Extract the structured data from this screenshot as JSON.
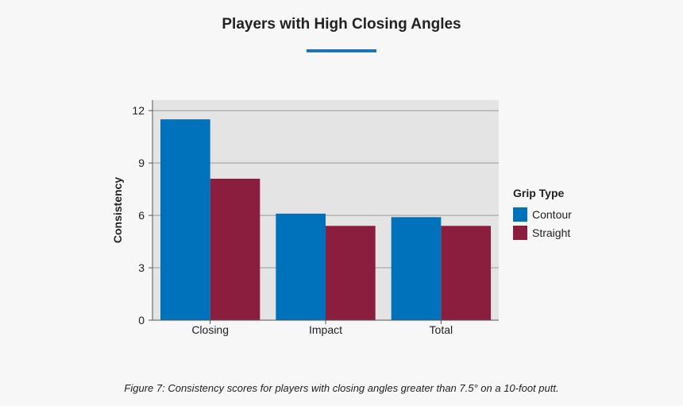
{
  "page": {
    "title": "Players with High Closing Angles",
    "caption": "Figure 7: Consistency scores for players with closing angles greater than 7.5° on a 10-foot putt.",
    "accent_color": "#1f73b7"
  },
  "chart_data": {
    "type": "bar",
    "title": "Players with High Closing Angles",
    "xlabel": "",
    "ylabel": "Consistency",
    "categories": [
      "Closing",
      "Impact",
      "Total"
    ],
    "series": [
      {
        "name": "Contour",
        "color": "#0072bc",
        "values": [
          11.5,
          6.1,
          5.9
        ]
      },
      {
        "name": "Straight",
        "color": "#8b1e3f",
        "values": [
          8.1,
          5.4,
          5.4
        ]
      }
    ],
    "ylim": [
      0,
      12.6
    ],
    "yticks": [
      0,
      3,
      6,
      9,
      12
    ],
    "grid": true,
    "legend": {
      "title": "Grip Type",
      "position": "right"
    }
  }
}
